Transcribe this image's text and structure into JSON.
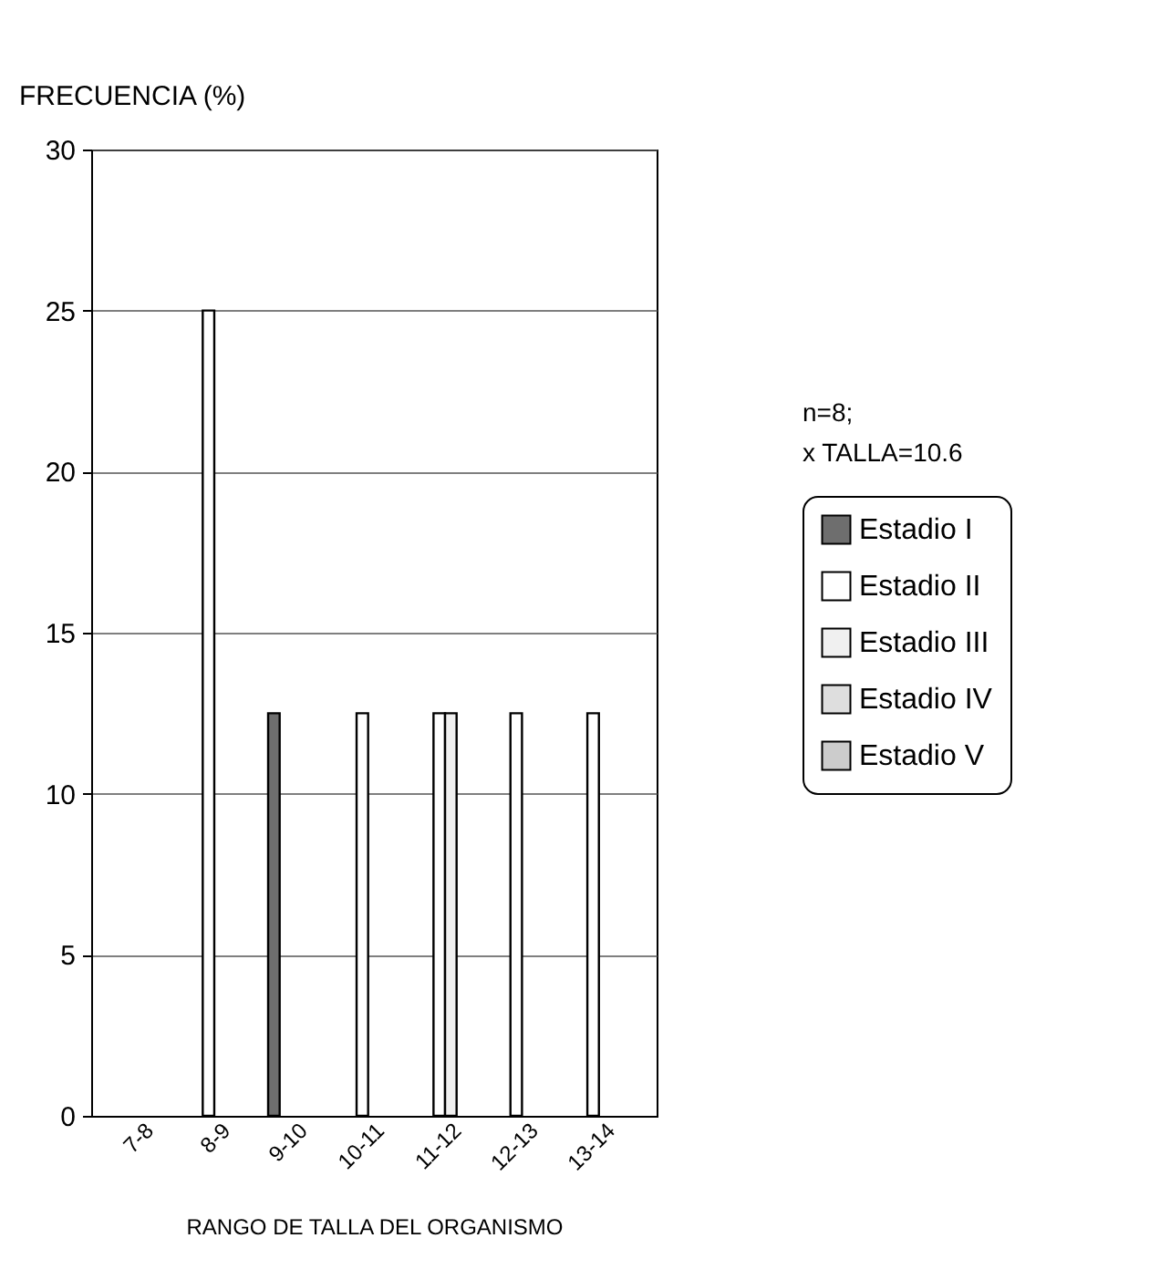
{
  "chart_data": {
    "type": "bar",
    "ylabel": "FRECUENCIA (%)",
    "xlabel": "RANGO DE TALLA DEL ORGANISMO",
    "categories": [
      "7-8",
      "8-9",
      "9-10",
      "10-11",
      "11-12",
      "12-13",
      "13-14"
    ],
    "series": [
      {
        "name": "Estadio I",
        "color": "#6e6e6e",
        "values": [
          null,
          null,
          12.5,
          null,
          null,
          null,
          null
        ]
      },
      {
        "name": "Estadio II",
        "color": "#ffffff",
        "values": [
          null,
          25,
          null,
          12.5,
          12.5,
          12.5,
          12.5
        ]
      },
      {
        "name": "Estadio III",
        "color": "#f0f0f0",
        "values": [
          null,
          null,
          null,
          null,
          12.5,
          null,
          null
        ]
      },
      {
        "name": "Estadio IV",
        "color": "#dedede",
        "values": [
          null,
          null,
          null,
          null,
          null,
          null,
          null
        ]
      },
      {
        "name": "Estadio V",
        "color": "#cccccc",
        "values": [
          null,
          null,
          null,
          null,
          null,
          null,
          null
        ]
      }
    ],
    "ylim": [
      0,
      30
    ],
    "yticks": [
      0,
      5,
      10,
      15,
      20,
      25,
      30
    ],
    "grid": "y",
    "legend": "right",
    "annotations": [
      "n=8;",
      "x TALLA=10.6"
    ]
  }
}
